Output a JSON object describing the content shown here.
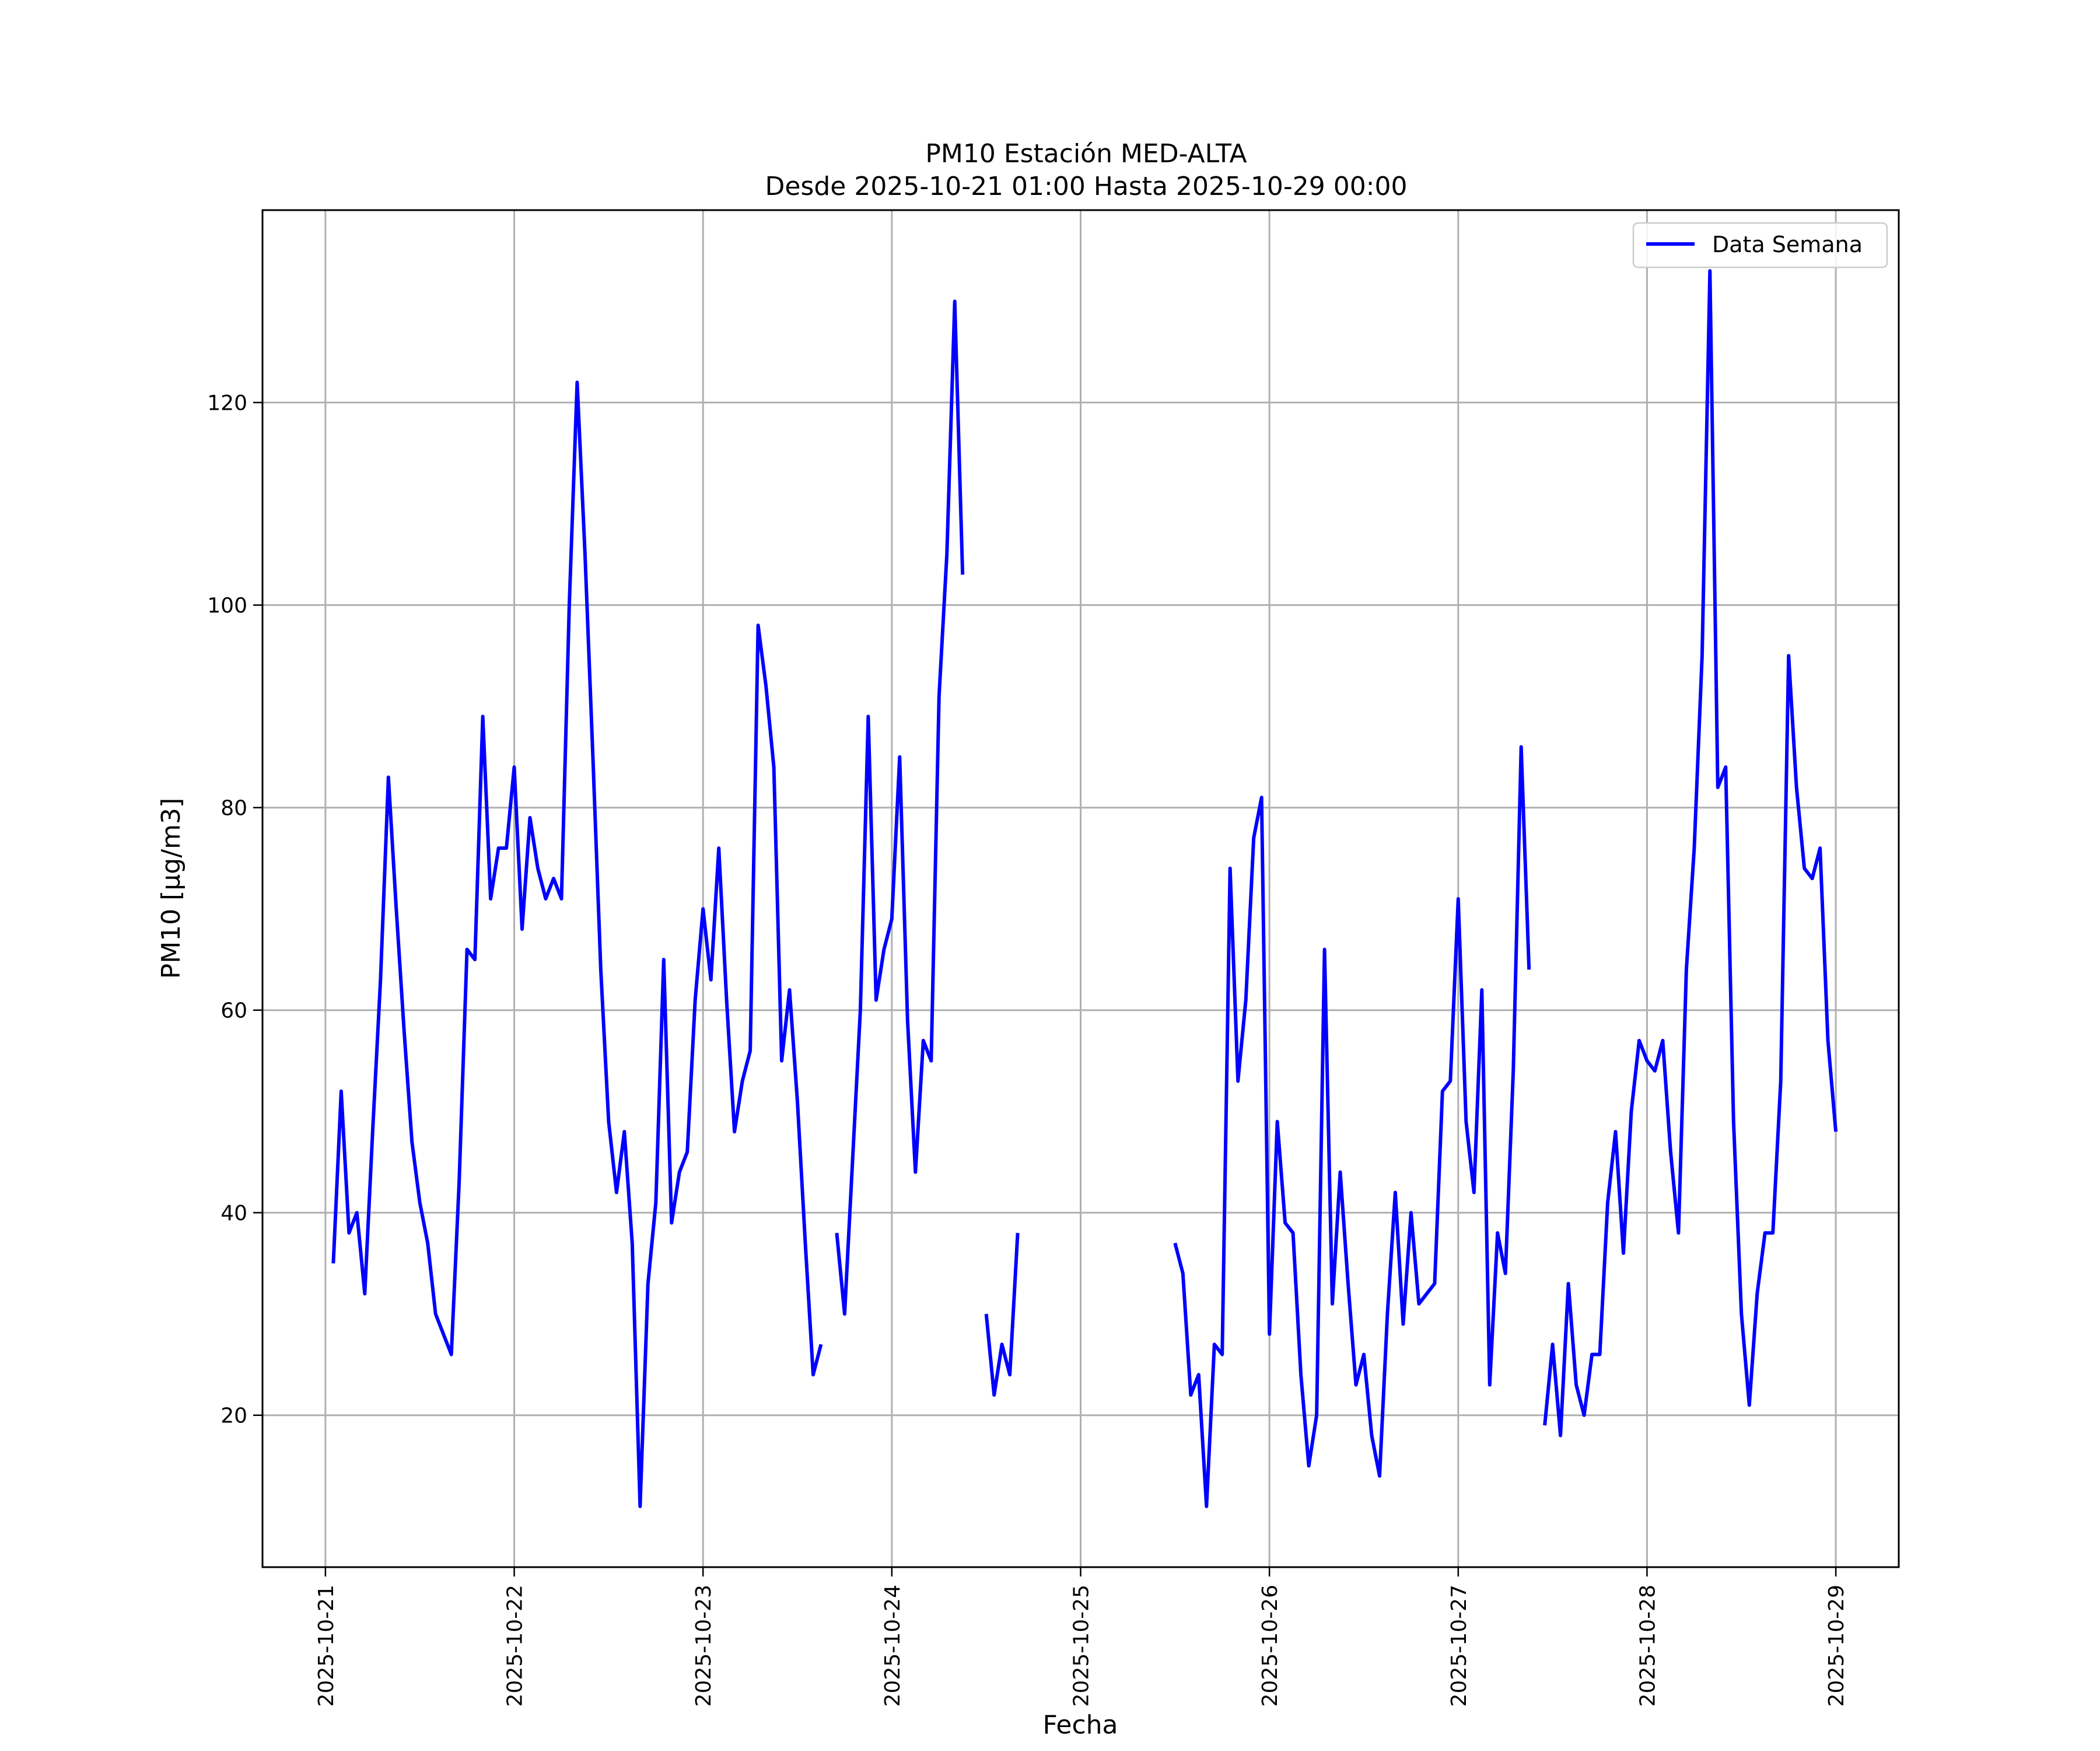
{
  "chart_data": {
    "type": "line",
    "title": "PM10 Estación MED-ALTA",
    "subtitle": "Desde 2025-10-21 01:00 Hasta 2025-10-29 00:00",
    "xlabel": "Fecha",
    "ylabel": "PM10 [μg/m3]",
    "x_range": [
      "2025-10-20 16:00",
      "2025-10-29 08:00"
    ],
    "ylim": [
      5,
      139
    ],
    "x_tick_labels": [
      "2025-10-21",
      "2025-10-22",
      "2025-10-23",
      "2025-10-24",
      "2025-10-25",
      "2025-10-26",
      "2025-10-27",
      "2025-10-28",
      "2025-10-29"
    ],
    "y_ticks": [
      20,
      40,
      60,
      80,
      100,
      120
    ],
    "grid": true,
    "legend_position": "upper-right",
    "line_color": "#0000ff",
    "series": [
      {
        "name": "Data Semana",
        "segments": [
          {
            "x": [
              "2025-10-21 01:00",
              "2025-10-21 02:00",
              "2025-10-21 03:00",
              "2025-10-21 04:00",
              "2025-10-21 05:00",
              "2025-10-21 06:00",
              "2025-10-21 07:00",
              "2025-10-21 08:00",
              "2025-10-21 09:00",
              "2025-10-21 10:00",
              "2025-10-21 11:00",
              "2025-10-21 12:00",
              "2025-10-21 13:00",
              "2025-10-21 14:00",
              "2025-10-21 15:00",
              "2025-10-21 16:00",
              "2025-10-21 17:00",
              "2025-10-21 18:00",
              "2025-10-21 19:00",
              "2025-10-21 20:00",
              "2025-10-21 21:00",
              "2025-10-21 22:00",
              "2025-10-21 23:00",
              "2025-10-22 00:00",
              "2025-10-22 01:00",
              "2025-10-22 02:00",
              "2025-10-22 03:00",
              "2025-10-22 04:00",
              "2025-10-22 05:00",
              "2025-10-22 06:00",
              "2025-10-22 07:00",
              "2025-10-22 08:00",
              "2025-10-22 09:00",
              "2025-10-22 10:00",
              "2025-10-22 11:00",
              "2025-10-22 12:00",
              "2025-10-22 13:00",
              "2025-10-22 14:00",
              "2025-10-22 15:00",
              "2025-10-22 16:00",
              "2025-10-22 17:00",
              "2025-10-22 18:00",
              "2025-10-22 19:00",
              "2025-10-22 20:00",
              "2025-10-22 21:00",
              "2025-10-22 22:00",
              "2025-10-22 23:00",
              "2025-10-23 00:00",
              "2025-10-23 01:00",
              "2025-10-23 02:00",
              "2025-10-23 03:00",
              "2025-10-23 04:00",
              "2025-10-23 05:00",
              "2025-10-23 06:00",
              "2025-10-23 07:00",
              "2025-10-23 08:00",
              "2025-10-23 09:00",
              "2025-10-23 10:00",
              "2025-10-23 11:00",
              "2025-10-23 12:00",
              "2025-10-23 13:00",
              "2025-10-23 14:00",
              "2025-10-23 15:00",
              "2025-10-23 16:00"
            ],
            "y": [
              35,
              52,
              38,
              40,
              32,
              48,
              63,
              83,
              70,
              58,
              47,
              41,
              37,
              30,
              28,
              26,
              43,
              66,
              65,
              89,
              71,
              76,
              76,
              84,
              68,
              79,
              74,
              71,
              73,
              71,
              100,
              122,
              105,
              85,
              64,
              49,
              42,
              48,
              37,
              11,
              33,
              41,
              65,
              39,
              44,
              46,
              61,
              70,
              63,
              76,
              61,
              48,
              53,
              56,
              98,
              92,
              84,
              55,
              62,
              51,
              37,
              24,
              27,
              null
            ]
          },
          {
            "x": [
              "2025-10-23 17:00",
              "2025-10-23 18:00",
              "2025-10-23 19:00",
              "2025-10-23 20:00",
              "2025-10-23 21:00",
              "2025-10-23 22:00",
              "2025-10-23 23:00",
              "2025-10-24 00:00",
              "2025-10-24 01:00",
              "2025-10-24 02:00",
              "2025-10-24 03:00",
              "2025-10-24 04:00",
              "2025-10-24 05:00",
              "2025-10-24 06:00",
              "2025-10-24 07:00",
              "2025-10-24 08:00",
              "2025-10-24 09:00"
            ],
            "y": [
              38,
              30,
              45,
              60,
              89,
              61,
              66,
              69,
              85,
              59,
              44,
              57,
              55,
              91,
              105,
              130,
              103
            ]
          },
          {
            "x": [
              "2025-10-24 12:00",
              "2025-10-24 13:00",
              "2025-10-24 14:00",
              "2025-10-24 15:00",
              "2025-10-24 16:00"
            ],
            "y": [
              30,
              22,
              27,
              24,
              38
            ]
          },
          {
            "x": [
              "2025-10-25 12:00",
              "2025-10-25 13:00",
              "2025-10-25 14:00",
              "2025-10-25 15:00",
              "2025-10-25 16:00",
              "2025-10-25 17:00",
              "2025-10-25 18:00",
              "2025-10-25 19:00",
              "2025-10-25 20:00",
              "2025-10-25 21:00",
              "2025-10-25 22:00",
              "2025-10-25 23:00",
              "2025-10-26 00:00",
              "2025-10-26 01:00",
              "2025-10-26 02:00",
              "2025-10-26 03:00",
              "2025-10-26 04:00",
              "2025-10-26 05:00",
              "2025-10-26 06:00",
              "2025-10-26 07:00",
              "2025-10-26 08:00",
              "2025-10-26 09:00",
              "2025-10-26 10:00",
              "2025-10-26 11:00",
              "2025-10-26 12:00",
              "2025-10-26 13:00",
              "2025-10-26 14:00",
              "2025-10-26 15:00",
              "2025-10-26 16:00",
              "2025-10-26 17:00",
              "2025-10-26 18:00",
              "2025-10-26 19:00",
              "2025-10-26 20:00",
              "2025-10-26 21:00",
              "2025-10-26 22:00",
              "2025-10-26 23:00",
              "2025-10-27 00:00",
              "2025-10-27 01:00",
              "2025-10-27 02:00",
              "2025-10-27 03:00",
              "2025-10-27 04:00",
              "2025-10-27 05:00",
              "2025-10-27 06:00",
              "2025-10-27 07:00",
              "2025-10-27 08:00",
              "2025-10-27 09:00"
            ],
            "y": [
              37,
              34,
              22,
              24,
              11,
              27,
              26,
              74,
              53,
              61,
              77,
              81,
              28,
              49,
              39,
              38,
              24,
              15,
              20,
              66,
              31,
              44,
              33,
              23,
              26,
              18,
              14,
              30,
              42,
              29,
              40,
              31,
              32,
              33,
              52,
              53,
              71,
              49,
              42,
              62,
              23,
              38,
              34,
              54,
              86,
              64
            ]
          },
          {
            "x": [
              "2025-10-27 11:00",
              "2025-10-27 12:00",
              "2025-10-27 13:00",
              "2025-10-27 14:00",
              "2025-10-27 15:00",
              "2025-10-27 16:00",
              "2025-10-27 17:00",
              "2025-10-27 18:00",
              "2025-10-27 19:00",
              "2025-10-27 20:00",
              "2025-10-27 21:00",
              "2025-10-27 22:00",
              "2025-10-27 23:00",
              "2025-10-28 00:00",
              "2025-10-28 01:00",
              "2025-10-28 02:00",
              "2025-10-28 03:00",
              "2025-10-28 04:00",
              "2025-10-28 05:00",
              "2025-10-28 06:00",
              "2025-10-28 07:00",
              "2025-10-28 08:00",
              "2025-10-28 09:00",
              "2025-10-28 10:00",
              "2025-10-28 11:00",
              "2025-10-28 12:00",
              "2025-10-28 13:00",
              "2025-10-28 14:00",
              "2025-10-28 15:00",
              "2025-10-28 16:00",
              "2025-10-28 17:00",
              "2025-10-28 18:00",
              "2025-10-28 19:00",
              "2025-10-28 20:00",
              "2025-10-28 21:00",
              "2025-10-28 22:00",
              "2025-10-28 23:00",
              "2025-10-29 00:00"
            ],
            "y": [
              19,
              27,
              18,
              33,
              23,
              20,
              26,
              26,
              41,
              48,
              36,
              50,
              57,
              55,
              54,
              57,
              46,
              38,
              64,
              76,
              95,
              133,
              82,
              84,
              49,
              30,
              21,
              32,
              38,
              38,
              53,
              95,
              82,
              74,
              73,
              76,
              57,
              48
            ]
          }
        ]
      }
    ]
  }
}
